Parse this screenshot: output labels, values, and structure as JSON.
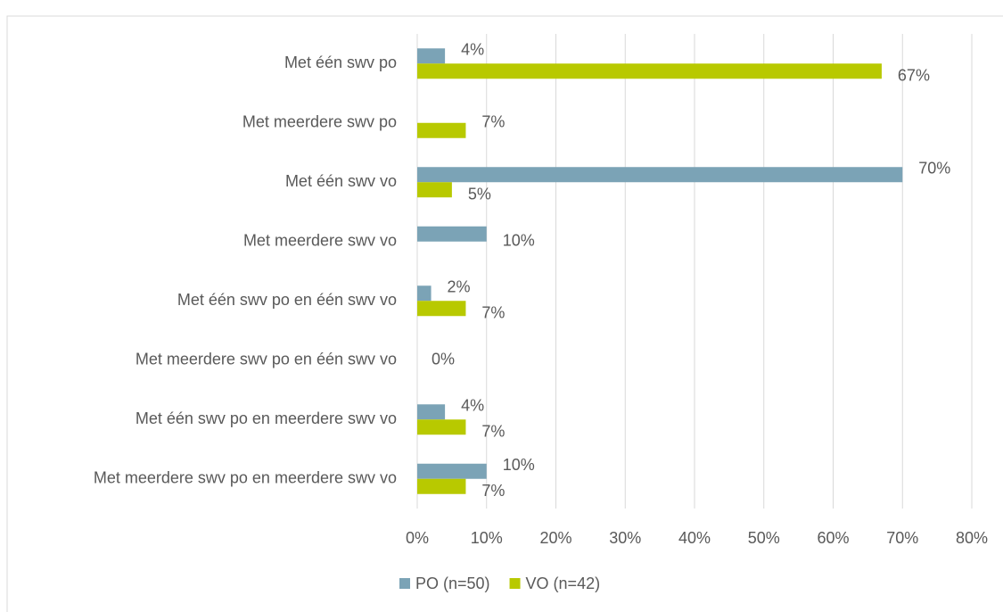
{
  "chart_data": {
    "type": "bar",
    "orientation": "horizontal",
    "categories": [
      "Met één swv po",
      "Met meerdere swv po",
      "Met één swv vo",
      "Met meerdere swv vo",
      "Met één swv po en één swv vo",
      "Met meerdere swv po en één swv vo",
      "Met één swv po en meerdere swv vo",
      "Met meerdere swv po en meerdere swv vo"
    ],
    "series": [
      {
        "name": "PO (n=50)",
        "color": "#7ba3b6",
        "values": [
          4,
          null,
          70,
          10,
          2,
          0,
          4,
          10
        ],
        "value_labels": [
          "4%",
          null,
          "70%",
          "10%",
          "2%",
          "0%",
          "4%",
          "10%"
        ]
      },
      {
        "name": "VO (n=42)",
        "color": "#b8c900",
        "values": [
          67,
          7,
          5,
          null,
          7,
          null,
          7,
          7
        ],
        "value_labels": [
          "67%",
          "7%",
          "5%",
          null,
          "7%",
          null,
          "7%",
          "7%"
        ]
      }
    ],
    "xlim": [
      0,
      80
    ],
    "xticks": [
      {
        "value": 0,
        "label": "0%"
      },
      {
        "value": 10,
        "label": "10%"
      },
      {
        "value": 20,
        "label": "20%"
      },
      {
        "value": 30,
        "label": "30%"
      },
      {
        "value": 40,
        "label": "40%"
      },
      {
        "value": 50,
        "label": "50%"
      },
      {
        "value": 60,
        "label": "60%"
      },
      {
        "value": 70,
        "label": "70%"
      },
      {
        "value": 80,
        "label": "80%"
      }
    ],
    "grid": true,
    "legend": "bottom"
  }
}
